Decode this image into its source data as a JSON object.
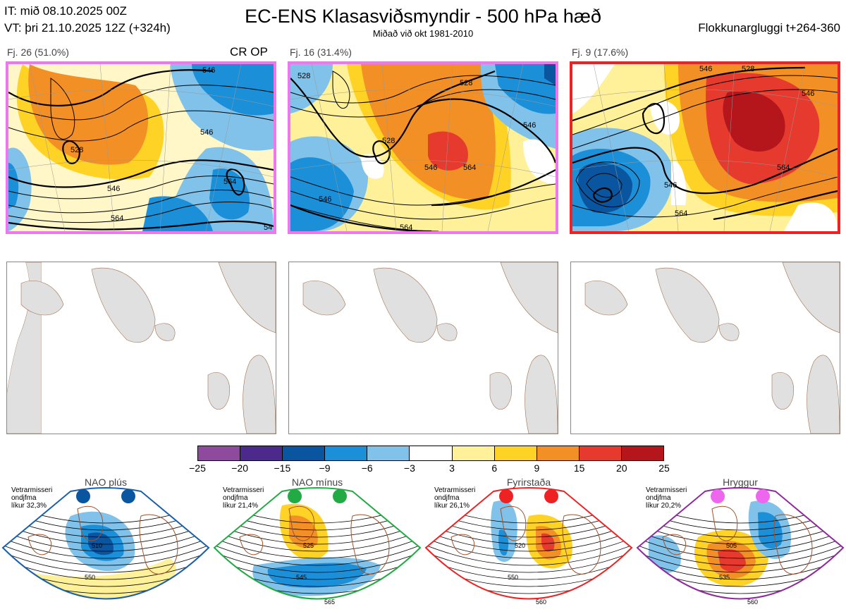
{
  "header": {
    "it": "IT: mið 08.10.2025 00Z",
    "vt": "VT: þri 21.10.2025 12Z  (+324h)",
    "title": "EC-ENS Klasasviðsmyndir - 500 hPa hæð",
    "subtitle": "Miðað við okt 1981-2010",
    "window": "Flokkunargluggi t+264-360"
  },
  "clusters": [
    {
      "label": "Fj. 26 (51.0%)",
      "tag": "CR OP",
      "border": "#ee77ee",
      "contours": [
        "546",
        "528",
        "546",
        "564",
        "546",
        "564",
        "54"
      ]
    },
    {
      "label": "Fj. 16 (31.4%)",
      "border": "#ee77ee",
      "contours": [
        "528",
        "528",
        "546",
        "546",
        "546",
        "564",
        "528",
        "564"
      ]
    },
    {
      "label": "Fj. 9 (17.6%)",
      "border": "#ee2222",
      "contours": [
        "546",
        "528",
        "546",
        "564",
        "546",
        "564"
      ]
    }
  ],
  "colorbar": {
    "ticks": [
      "−25",
      "−20",
      "−15",
      "−9",
      "−6",
      "−3",
      "3",
      "6",
      "9",
      "15",
      "20",
      "25"
    ],
    "colors": [
      "#8e4a9c",
      "#4b2a8c",
      "#0a55a0",
      "#1b90d8",
      "#80c2ea",
      "#ffffff",
      "#fff19a",
      "#ffd226",
      "#f29026",
      "#e63a2e",
      "#b4161c"
    ]
  },
  "regimes": [
    {
      "name": "NAO plús",
      "info": [
        "Vetrarmisseri",
        "ondjfma",
        "líkur 32,3%"
      ],
      "dot": "#0a55a0",
      "frame": "#1a5fa8",
      "labels": [
        "510",
        "550"
      ]
    },
    {
      "name": "NAO mínus",
      "info": [
        "Vetrarmisseri",
        "ondjfma",
        "líkur 21,4%"
      ],
      "dot": "#22aa44",
      "frame": "#22aa44",
      "labels": [
        "525",
        "545",
        "565"
      ]
    },
    {
      "name": "Fyrirstaða",
      "info": [
        "Vetrarmisseri",
        "ondjfma",
        "líkur 26,1%"
      ],
      "dot": "#ee2222",
      "frame": "#ee2222",
      "labels": [
        "520",
        "550",
        "560"
      ]
    },
    {
      "name": "Hryggur",
      "info": [
        "Vetrarmisseri",
        "ondjfma",
        "líkur 20,2%"
      ],
      "dot": "#ee66ee",
      "frame": "#8e2a9c",
      "labels": [
        "505",
        "535",
        "560"
      ]
    }
  ]
}
